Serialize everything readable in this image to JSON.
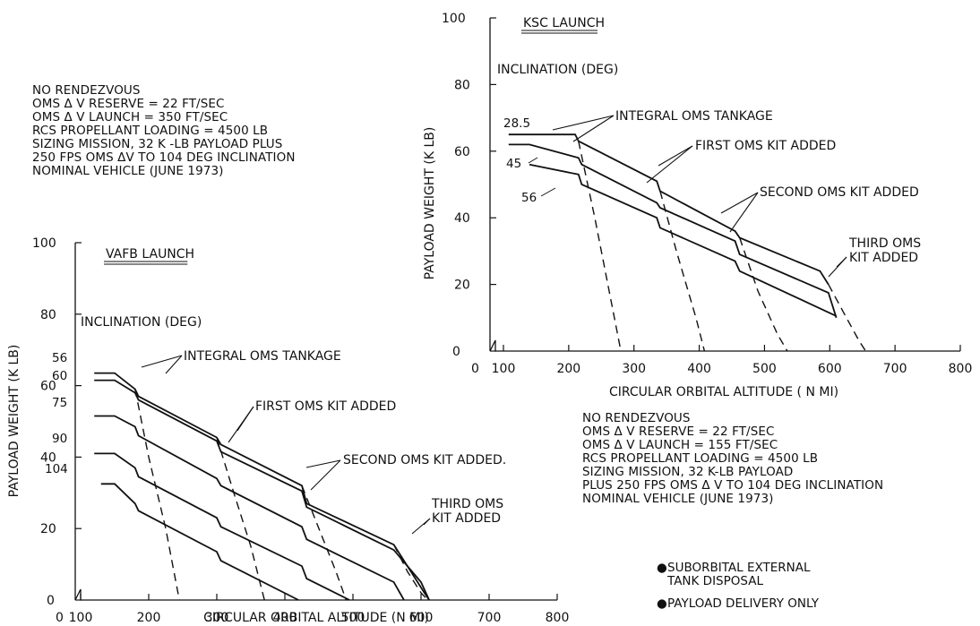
{
  "notes_vafb": [
    "NO RENDEZVOUS",
    "OMS Δ V RESERVE = 22 FT/SEC",
    "OMS Δ V LAUNCH = 350 FT/SEC",
    "RCS PROPELLANT LOADING = 4500 LB",
    "SIZING MISSION, 32 K -LB PAYLOAD PLUS",
    "250 FPS OMS ΔV TO 104 DEG INCLINATION",
    "NOMINAL VEHICLE (JUNE 1973)"
  ],
  "notes_ksc": [
    "NO RENDEZVOUS",
    "OMS Δ V RESERVE = 22 FT/SEC",
    "OMS Δ V LAUNCH = 155 FT/SEC",
    "RCS PROPELLANT LOADING = 4500 LB",
    "SIZING MISSION, 32 K-LB PAYLOAD",
    "PLUS 250 FPS OMS Δ V TO 104 DEG INCLINATION",
    "NOMINAL VEHICLE (JUNE 1973)"
  ],
  "bullets": [
    {
      "line1": "SUBORBITAL EXTERNAL",
      "line2": "TANK DISPOSAL"
    },
    {
      "line1": "PAYLOAD DELIVERY ONLY",
      "line2": ""
    }
  ],
  "chart_data": [
    {
      "type": "line",
      "title": "VAFB LAUNCH",
      "subtitle": "INCLINATION (DEG)",
      "xlabel": "CIRCULAR ORBITAL ALTITUDE (N MI)",
      "ylabel": "PAYLOAD WEIGHT (K LB)",
      "xlim": [
        100,
        800
      ],
      "ylim": [
        0,
        100
      ],
      "xticks": [
        100,
        200,
        300,
        400,
        500,
        600,
        700,
        800
      ],
      "yticks": [
        0,
        20,
        40,
        60,
        80,
        100
      ],
      "annotations": [
        "INTEGRAL OMS TANKAGE",
        "FIRST OMS KIT ADDED",
        "SECOND OMS KIT ADDED.",
        "THIRD OMS",
        "KIT ADDED"
      ],
      "series": [
        {
          "name": "56",
          "points": [
            [
              120,
              63.5
            ],
            [
              150,
              63.5
            ],
            [
              180,
              59
            ],
            [
              185,
              57
            ],
            [
              300,
              45.5
            ],
            [
              306,
              43.5
            ],
            [
              425,
              32
            ],
            [
              432,
              27
            ],
            [
              560,
              15.5
            ],
            [
              605,
              2
            ],
            [
              612,
              0
            ]
          ]
        },
        {
          "name": "60",
          "points": [
            [
              120,
              61.5
            ],
            [
              150,
              61.5
            ],
            [
              180,
              58
            ],
            [
              185,
              56
            ],
            [
              300,
              44.5
            ],
            [
              306,
              41.5
            ],
            [
              425,
              30.5
            ],
            [
              432,
              26
            ],
            [
              560,
              14
            ],
            [
              600,
              5
            ],
            [
              612,
              0
            ]
          ]
        },
        {
          "name": "75",
          "points": [
            [
              120,
              51.5
            ],
            [
              150,
              51.5
            ],
            [
              180,
              48.5
            ],
            [
              185,
              46
            ],
            [
              300,
              34
            ],
            [
              306,
              32
            ],
            [
              425,
              20.5
            ],
            [
              432,
              17
            ],
            [
              560,
              5
            ],
            [
              575,
              0
            ]
          ]
        },
        {
          "name": "90",
          "points": [
            [
              120,
              41
            ],
            [
              150,
              41
            ],
            [
              180,
              37
            ],
            [
              185,
              34.5
            ],
            [
              300,
              23
            ],
            [
              306,
              20.5
            ],
            [
              425,
              9.5
            ],
            [
              432,
              6
            ],
            [
              495,
              0
            ]
          ]
        },
        {
          "name": "104",
          "points": [
            [
              130,
              32.5
            ],
            [
              150,
              32.5
            ],
            [
              180,
              27
            ],
            [
              185,
              25
            ],
            [
              300,
              13.5
            ],
            [
              306,
              11
            ],
            [
              420,
              0
            ]
          ]
        }
      ],
      "disposal_boundaries": [
        [
          [
            180,
            59
          ],
          [
            200,
            40
          ],
          [
            225,
            20
          ],
          [
            245,
            0
          ]
        ],
        [
          [
            300,
            45.5
          ],
          [
            325,
            30
          ],
          [
            350,
            15
          ],
          [
            370,
            0
          ]
        ],
        [
          [
            425,
            32
          ],
          [
            450,
            20
          ],
          [
            475,
            8
          ],
          [
            490,
            0
          ]
        ],
        [
          [
            560,
            15.5
          ],
          [
            580,
            8
          ],
          [
            600,
            2
          ],
          [
            610,
            0
          ]
        ]
      ]
    },
    {
      "type": "line",
      "title": "KSC LAUNCH",
      "subtitle": "INCLINATION (DEG)",
      "xlabel": "CIRCULAR ORBITAL ALTITUDE ( N MI)",
      "ylabel": "PAYLOAD WEIGHT (K LB)",
      "xlim": [
        100,
        800
      ],
      "ylim": [
        0,
        100
      ],
      "xticks": [
        100,
        200,
        300,
        400,
        500,
        600,
        700,
        800
      ],
      "yticks": [
        0,
        20,
        40,
        60,
        80,
        100
      ],
      "annotations": [
        "INTEGRAL OMS TANKAGE",
        "FIRST OMS KIT ADDED",
        "SECOND OMS KIT ADDED",
        "THIRD OMS",
        "KIT ADDED"
      ],
      "series": [
        {
          "name": "28.5",
          "points": [
            [
              108,
              65
            ],
            [
              210,
              65
            ],
            [
              215,
              63
            ],
            [
              335,
              51
            ],
            [
              340,
              48
            ],
            [
              455,
              36
            ],
            [
              462,
              34
            ],
            [
              585,
              24
            ],
            [
              598,
              20
            ]
          ]
        },
        {
          "name": "45",
          "points": [
            [
              108,
              62
            ],
            [
              140,
              62
            ],
            [
              215,
              58
            ],
            [
              220,
              56
            ],
            [
              335,
              44.5
            ],
            [
              340,
              43
            ],
            [
              455,
              33
            ],
            [
              462,
              29
            ],
            [
              598,
              17.5
            ],
            [
              610,
              10
            ]
          ]
        },
        {
          "name": "56",
          "points": [
            [
              140,
              56
            ],
            [
              215,
              53
            ],
            [
              220,
              50
            ],
            [
              335,
              40
            ],
            [
              340,
              37
            ],
            [
              455,
              27
            ],
            [
              462,
              24
            ],
            [
              610,
              10.5
            ]
          ]
        }
      ],
      "disposal_boundaries": [
        [
          [
            215,
            63
          ],
          [
            240,
            40
          ],
          [
            265,
            15
          ],
          [
            280,
            0
          ]
        ],
        [
          [
            340,
            48
          ],
          [
            365,
            30
          ],
          [
            395,
            10
          ],
          [
            408,
            0
          ]
        ],
        [
          [
            462,
            34
          ],
          [
            490,
            18
          ],
          [
            520,
            5
          ],
          [
            535,
            0
          ]
        ],
        [
          [
            598,
            20
          ],
          [
            620,
            12
          ],
          [
            645,
            3
          ],
          [
            655,
            0
          ]
        ]
      ]
    }
  ]
}
